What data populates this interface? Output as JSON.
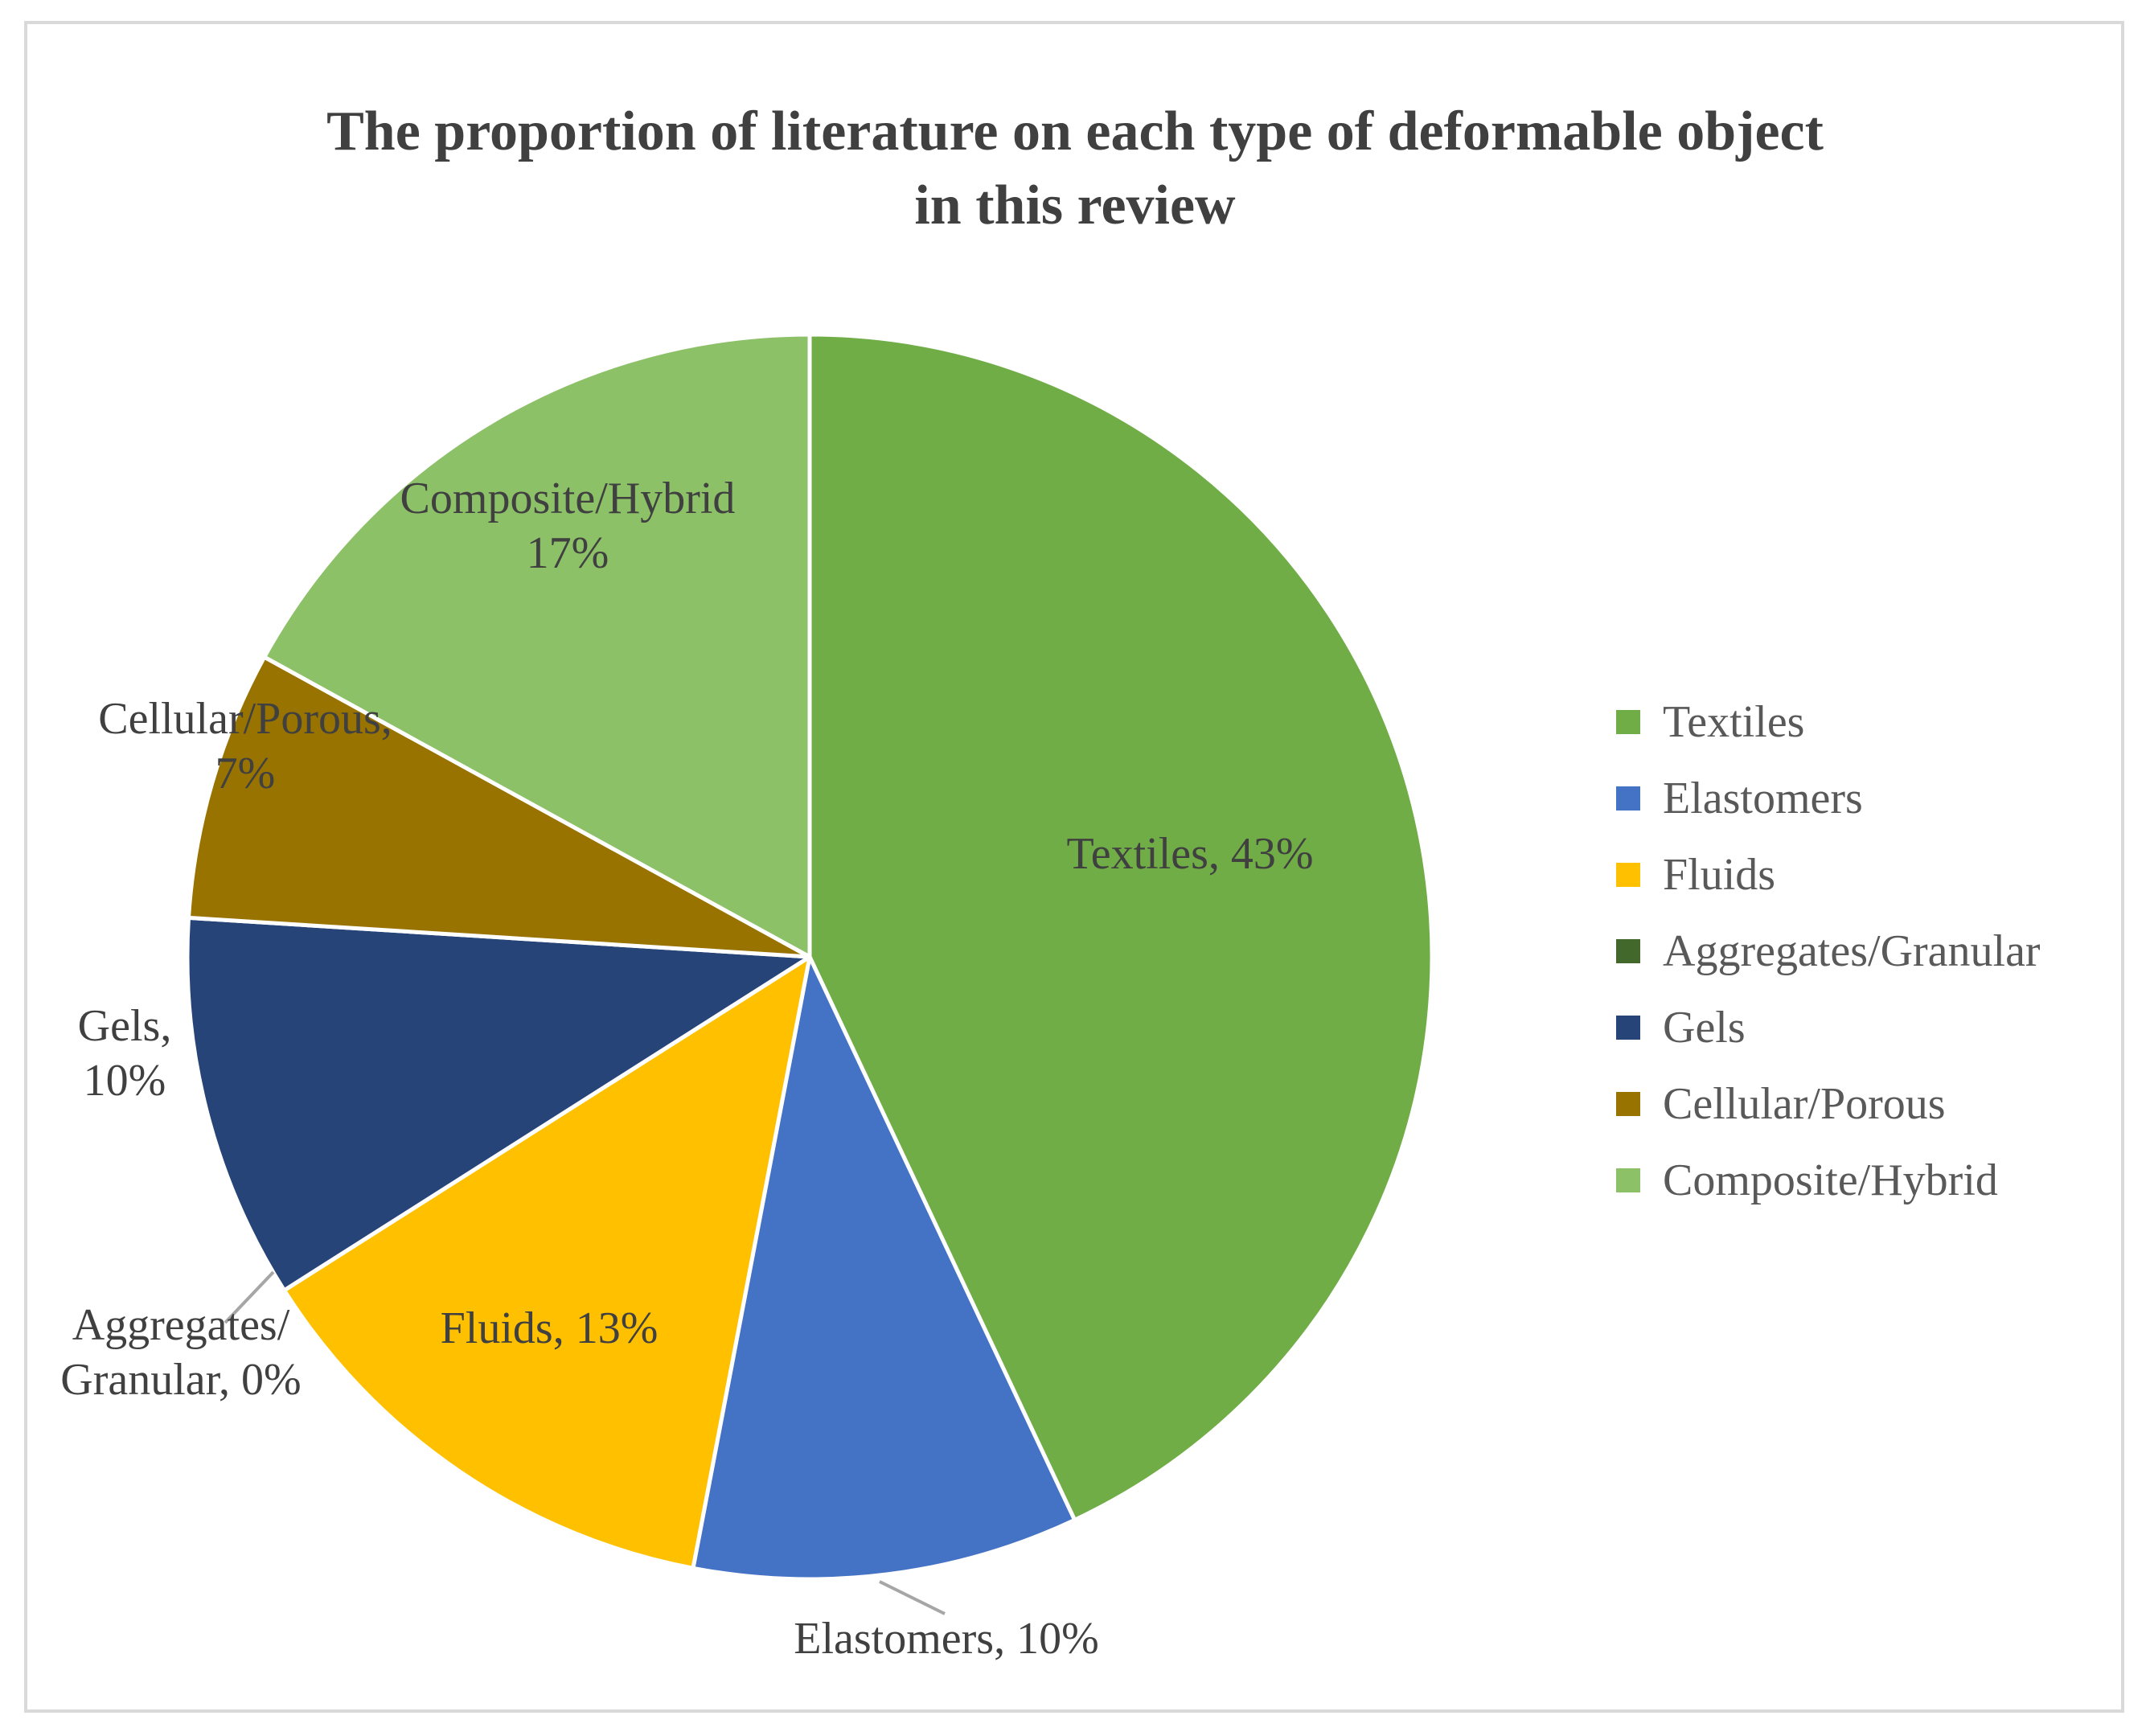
{
  "chart_data": {
    "type": "pie",
    "title": "The proportion of literature on each type of deformable object in this review",
    "title_lines": [
      "The proportion of literature on each type of deformable object",
      "in this review"
    ],
    "slices": [
      {
        "name": "Textiles",
        "value": 43,
        "color": "#70ad47",
        "label": [
          "Textiles, 43%"
        ]
      },
      {
        "name": "Elastomers",
        "value": 10,
        "color": "#4472c4",
        "label": [
          "Elastomers, 10%"
        ]
      },
      {
        "name": "Fluids",
        "value": 13,
        "color": "#ffc000",
        "label": [
          "Fluids, 13%"
        ]
      },
      {
        "name": "Aggregates/Granular",
        "value": 0,
        "color": "#43682b",
        "label": [
          "Aggregates/",
          "Granular, 0%"
        ]
      },
      {
        "name": "Gels",
        "value": 10,
        "color": "#264478",
        "label": [
          "Gels,",
          "10%"
        ]
      },
      {
        "name": "Cellular/Porous",
        "value": 7,
        "color": "#997300",
        "label": [
          "Cellular/Porous,",
          "7%"
        ]
      },
      {
        "name": "Composite/Hybrid",
        "value": 17,
        "color": "#8cc168",
        "label": [
          "Composite/Hybrid",
          "17%"
        ]
      }
    ],
    "unit": "%",
    "start_angle": "12 o'clock",
    "direction": "clockwise",
    "legend_position": "right"
  }
}
